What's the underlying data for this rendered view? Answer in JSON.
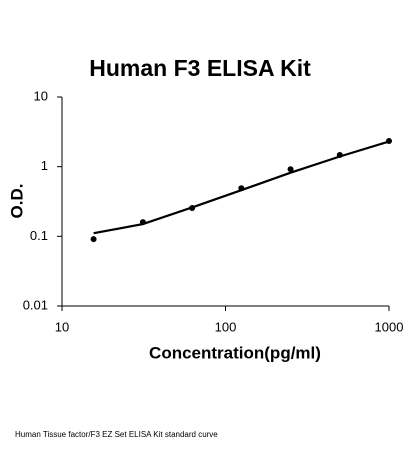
{
  "chart_data": {
    "type": "scatter",
    "title": "Human F3 ELISA Kit",
    "x_label": "Concentration(pg/ml)",
    "y_label": "O.D.",
    "footnote": "Human Tissue factor/F3 EZ Set ELISA Kit standard curve",
    "x": [
      15.6,
      31.25,
      62.5,
      125,
      250,
      500,
      1000
    ],
    "series": [
      {
        "color": "#000000",
        "values": [
          0.091,
          0.16,
          0.255,
          0.49,
          0.92,
          1.47,
          2.34
        ]
      }
    ],
    "curve": {
      "color": "#000000",
      "x": [
        15.6,
        31.25,
        62.5,
        125,
        250,
        500,
        1000
      ],
      "values": [
        0.111,
        0.15,
        0.26,
        0.46,
        0.82,
        1.4,
        2.3
      ]
    },
    "log_x": true,
    "log_y": true,
    "xlim": [
      10,
      1000
    ],
    "ylim": [
      0.01,
      10
    ],
    "xticks": [
      10,
      100,
      1000
    ],
    "yticks": [
      0.01,
      0.1,
      1,
      10
    ]
  }
}
